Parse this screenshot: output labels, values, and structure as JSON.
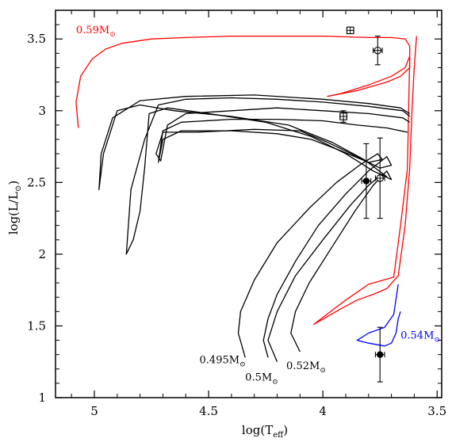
{
  "chart_data": {
    "type": "line",
    "title": "",
    "xlabel": "log(T",
    "xlabel_sub": "eff",
    "xlabel_end": ")",
    "ylabel": "log(L/L",
    "ylabel_sun": "⊙",
    "ylabel_end": ")",
    "x_reversed": true,
    "xlim": [
      5.17,
      3.48
    ],
    "ylim": [
      1.0,
      3.7
    ],
    "grid": false,
    "x_ticks": [
      5,
      4.5,
      4,
      3.5
    ],
    "x_tick_labels": [
      "5",
      "4.5",
      "4",
      "3.5"
    ],
    "y_ticks": [
      1,
      1.5,
      2,
      2.5,
      3,
      3.5
    ],
    "y_tick_labels": [
      "1",
      "1.5",
      "2",
      "2.5",
      "3",
      "3.5"
    ],
    "colors": {
      "red": "#ff0000",
      "blue": "#0000ff",
      "black": "#000000"
    },
    "series": [
      {
        "color": "#ff0000",
        "label_text": "0.59M",
        "label_sun": "⊙",
        "label_at": [
          5.08,
          3.54
        ],
        "points": [
          [
            5.07,
            2.88
          ],
          [
            5.08,
            3.06
          ],
          [
            5.06,
            3.24
          ],
          [
            5.01,
            3.36
          ],
          [
            4.95,
            3.43
          ],
          [
            4.88,
            3.47
          ],
          [
            4.75,
            3.5
          ],
          [
            4.6,
            3.51
          ],
          [
            4.4,
            3.52
          ],
          [
            4.2,
            3.52
          ],
          [
            4.0,
            3.52
          ],
          [
            3.8,
            3.51
          ],
          [
            3.7,
            3.51
          ],
          [
            3.64,
            3.5
          ],
          [
            3.62,
            3.45
          ],
          [
            3.62,
            3.3
          ],
          [
            3.66,
            3.24
          ],
          [
            3.72,
            3.2
          ],
          [
            3.85,
            3.14
          ],
          [
            3.98,
            3.1
          ],
          [
            3.92,
            3.12
          ],
          [
            3.8,
            3.18
          ],
          [
            3.7,
            3.24
          ],
          [
            3.64,
            3.3
          ],
          [
            3.62,
            3.38
          ],
          [
            3.63,
            2.6
          ],
          [
            3.66,
            2.2
          ],
          [
            3.69,
            1.84
          ],
          [
            3.8,
            1.79
          ],
          [
            3.9,
            1.68
          ],
          [
            4.0,
            1.56
          ],
          [
            4.04,
            1.51
          ],
          [
            3.92,
            1.62
          ],
          [
            3.85,
            1.68
          ],
          [
            3.78,
            1.72
          ],
          [
            3.72,
            1.76
          ],
          [
            3.67,
            1.85
          ],
          [
            3.64,
            2.2
          ],
          [
            3.62,
            2.6
          ],
          [
            3.61,
            3.0
          ],
          [
            3.6,
            3.3
          ],
          [
            3.59,
            3.52
          ]
        ]
      },
      {
        "color": "#0000ff",
        "label_text": "0.54M",
        "label_sun": "⊙",
        "label_at": [
          3.66,
          1.41
        ],
        "points": [
          [
            3.67,
            1.79
          ],
          [
            3.69,
            1.58
          ],
          [
            3.73,
            1.49
          ],
          [
            3.8,
            1.45
          ],
          [
            3.85,
            1.4
          ],
          [
            3.8,
            1.38
          ],
          [
            3.73,
            1.36
          ],
          [
            3.7,
            1.38
          ],
          [
            3.68,
            1.45
          ],
          [
            3.67,
            1.55
          ],
          [
            3.66,
            1.6
          ]
        ]
      },
      {
        "color": "#000000",
        "points": [
          [
            4.24,
            1.28
          ],
          [
            4.26,
            1.4
          ],
          [
            4.24,
            1.55
          ],
          [
            4.2,
            1.72
          ],
          [
            4.12,
            1.95
          ],
          [
            4.02,
            2.2
          ],
          [
            3.9,
            2.42
          ],
          [
            3.8,
            2.58
          ],
          [
            3.72,
            2.68
          ],
          [
            3.7,
            2.62
          ],
          [
            3.75,
            2.6
          ],
          [
            3.85,
            2.68
          ],
          [
            3.98,
            2.78
          ],
          [
            4.1,
            2.86
          ],
          [
            4.3,
            2.87
          ],
          [
            4.55,
            2.85
          ],
          [
            4.7,
            2.85
          ],
          [
            4.73,
            2.7
          ],
          [
            4.71,
            2.65
          ],
          [
            4.68,
            2.9
          ],
          [
            4.6,
            2.98
          ],
          [
            4.4,
            3.0
          ],
          [
            4.2,
            3.02
          ],
          [
            4.0,
            3.0
          ],
          [
            3.8,
            2.98
          ],
          [
            3.65,
            2.95
          ],
          [
            3.62,
            2.92
          ]
        ]
      },
      {
        "color": "#000000",
        "points": [
          [
            4.1,
            1.32
          ],
          [
            4.14,
            1.45
          ],
          [
            4.12,
            1.6
          ],
          [
            4.06,
            1.8
          ],
          [
            3.96,
            2.05
          ],
          [
            3.86,
            2.3
          ],
          [
            3.78,
            2.48
          ],
          [
            3.72,
            2.58
          ],
          [
            3.7,
            2.52
          ],
          [
            3.78,
            2.58
          ],
          [
            3.9,
            2.7
          ],
          [
            4.05,
            2.82
          ],
          [
            4.25,
            2.92
          ],
          [
            4.5,
            2.98
          ],
          [
            4.68,
            3.02
          ],
          [
            4.76,
            2.98
          ],
          [
            4.78,
            2.6
          ],
          [
            4.8,
            2.3
          ],
          [
            4.83,
            2.1
          ],
          [
            4.86,
            2.0
          ],
          [
            4.84,
            2.45
          ],
          [
            4.78,
            2.8
          ],
          [
            4.72,
            3.04
          ],
          [
            4.6,
            3.08
          ],
          [
            4.4,
            3.09
          ],
          [
            4.2,
            3.08
          ],
          [
            4.0,
            3.06
          ],
          [
            3.8,
            3.03
          ],
          [
            3.65,
            3.0
          ],
          [
            3.62,
            2.96
          ]
        ]
      },
      {
        "color": "#000000",
        "points": [
          [
            4.2,
            1.25
          ],
          [
            4.24,
            1.4
          ],
          [
            4.2,
            1.6
          ],
          [
            4.12,
            1.85
          ],
          [
            4.0,
            2.1
          ],
          [
            3.88,
            2.34
          ],
          [
            3.8,
            2.48
          ],
          [
            3.74,
            2.56
          ],
          [
            3.72,
            2.54
          ],
          [
            3.82,
            2.66
          ],
          [
            3.96,
            2.78
          ],
          [
            4.15,
            2.9
          ],
          [
            4.4,
            2.96
          ],
          [
            4.65,
            3.0
          ],
          [
            4.8,
            3.04
          ],
          [
            4.9,
            3.0
          ],
          [
            4.96,
            2.7
          ],
          [
            4.98,
            2.45
          ],
          [
            4.97,
            2.7
          ],
          [
            4.92,
            2.95
          ],
          [
            4.8,
            3.07
          ],
          [
            4.6,
            3.1
          ],
          [
            4.3,
            3.11
          ],
          [
            4.0,
            3.08
          ],
          [
            3.8,
            3.05
          ],
          [
            3.66,
            3.02
          ],
          [
            3.62,
            2.98
          ]
        ]
      },
      {
        "color": "#000000",
        "points": [
          [
            4.34,
            1.28
          ],
          [
            4.37,
            1.45
          ],
          [
            4.36,
            1.6
          ],
          [
            4.3,
            1.82
          ],
          [
            4.2,
            2.08
          ],
          [
            4.06,
            2.32
          ],
          [
            3.94,
            2.5
          ],
          [
            3.84,
            2.62
          ],
          [
            3.76,
            2.7
          ],
          [
            3.74,
            2.66
          ],
          [
            3.8,
            2.64
          ],
          [
            3.92,
            2.72
          ],
          [
            4.05,
            2.8
          ],
          [
            4.2,
            2.84
          ],
          [
            4.4,
            2.86
          ],
          [
            4.62,
            2.86
          ],
          [
            4.7,
            2.8
          ],
          [
            4.72,
            2.64
          ],
          [
            4.7,
            2.86
          ],
          [
            4.62,
            2.92
          ],
          [
            4.4,
            2.94
          ],
          [
            4.2,
            2.94
          ],
          [
            4.0,
            2.93
          ],
          [
            3.85,
            2.9
          ],
          [
            3.72,
            2.88
          ],
          [
            3.63,
            2.85
          ]
        ]
      }
    ],
    "track_labels": [
      {
        "text": "0.495M",
        "sun": "⊙",
        "at": [
          4.54,
          1.24
        ]
      },
      {
        "text": "0.5M",
        "sun": "⊙",
        "at": [
          4.34,
          1.12
        ]
      },
      {
        "text": "0.52M",
        "sun": "⊙",
        "at": [
          4.16,
          1.2
        ]
      }
    ],
    "points": [
      {
        "x": 3.88,
        "y": 3.56,
        "marker": "square-plus",
        "xerr": 0.015,
        "yerr": 0.0
      },
      {
        "x": 3.76,
        "y": 3.42,
        "marker": "circle-plus",
        "xerr": 0.02,
        "yerr": 0.1
      },
      {
        "x": 3.91,
        "y": 2.96,
        "marker": "square-plus",
        "xerr": 0.015,
        "yerr": 0.04
      },
      {
        "x": 3.81,
        "y": 2.51,
        "marker": "filled-circle",
        "xerr": 0.02,
        "yerr": 0.26
      },
      {
        "x": 3.75,
        "y": 2.53,
        "marker": "circle-plus",
        "xerr": 0.02,
        "yerr": 0.28
      },
      {
        "x": 3.75,
        "y": 1.3,
        "marker": "filled-circle",
        "xerr": 0.02,
        "yerr": 0.19
      }
    ]
  }
}
